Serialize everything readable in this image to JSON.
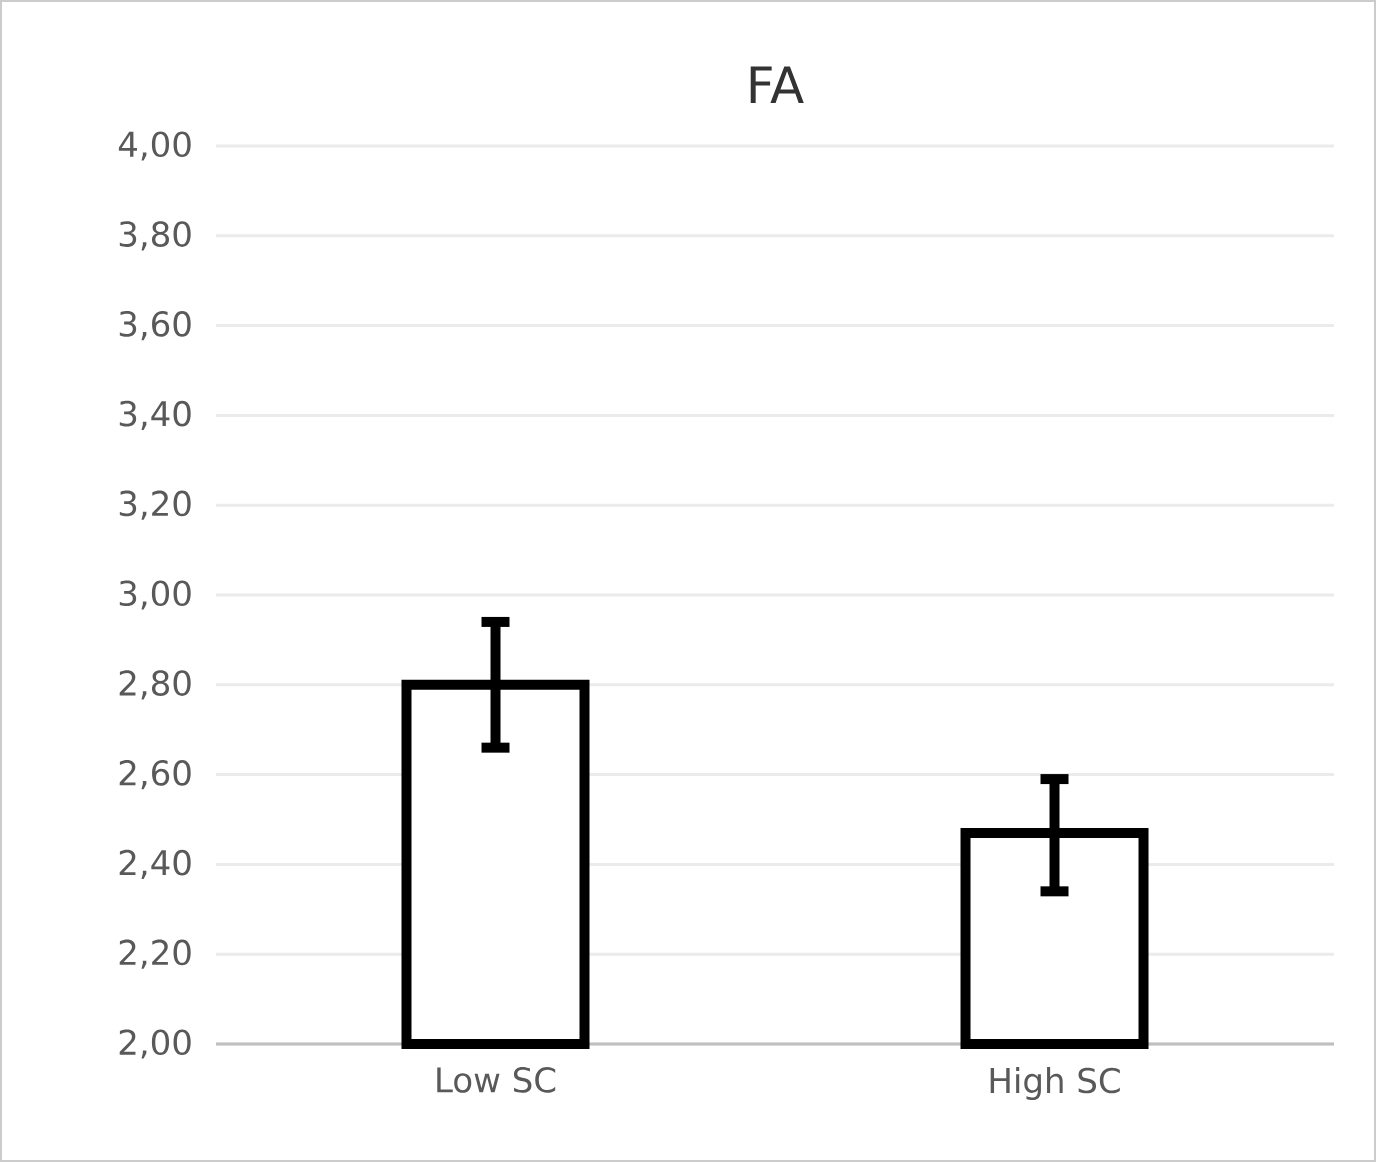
{
  "chart_data": {
    "type": "bar",
    "title": "FA",
    "categories": [
      "Low SC",
      "High SC"
    ],
    "values": [
      2.8,
      2.47
    ],
    "errors": [
      [
        2.66,
        2.94
      ],
      [
        2.34,
        2.59
      ]
    ],
    "color": "#000000",
    "ylim": [
      2.0,
      4.0
    ],
    "yticks": [
      {
        "value": 2.0,
        "label": "2,00"
      },
      {
        "value": 2.2,
        "label": "2,20"
      },
      {
        "value": 2.4,
        "label": "2,40"
      },
      {
        "value": 2.6,
        "label": "2,60"
      },
      {
        "value": 2.8,
        "label": "2,80"
      },
      {
        "value": 3.0,
        "label": "3,00"
      },
      {
        "value": 3.2,
        "label": "3,20"
      },
      {
        "value": 3.4,
        "label": "3,40"
      },
      {
        "value": 3.6,
        "label": "3,60"
      },
      {
        "value": 3.8,
        "label": "3,80"
      },
      {
        "value": 4.0,
        "label": "4,00"
      }
    ],
    "grid": "y"
  }
}
